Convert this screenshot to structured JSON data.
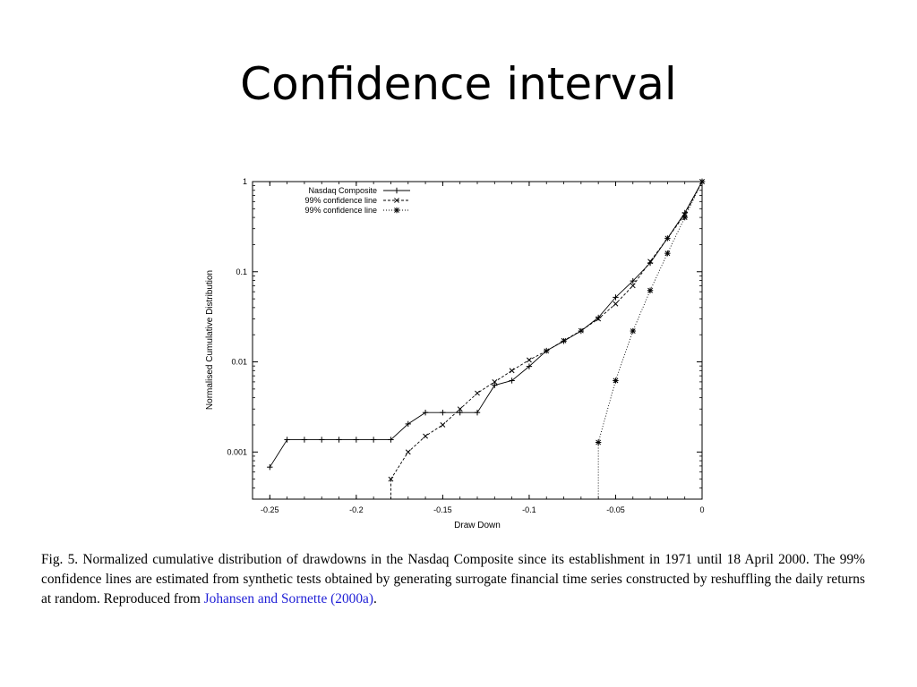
{
  "slide": {
    "title": "Confidence interval"
  },
  "caption": {
    "text": "Fig. 5. Normalized cumulative distribution of drawdowns in the Nasdaq Composite since its establishment in 1971 until 18 April 2000. The 99% confidence lines are estimated from synthetic tests obtained by generating surrogate financial time series constructed by reshuffling the daily returns at random. Reproduced from ",
    "link_text": "Johansen and Sornette (2000a)",
    "end": "."
  },
  "chart_data": {
    "type": "line",
    "xlabel": "Draw Down",
    "ylabel": "Normalised Cumulative Distribution",
    "xlim": [
      -0.26,
      0
    ],
    "ylim": [
      0.0003,
      1
    ],
    "y_scale": "log",
    "grid": false,
    "legend_position": "top-left",
    "x_ticks": [
      -0.25,
      -0.2,
      -0.15,
      -0.1,
      -0.05,
      0
    ],
    "x_tick_labels": [
      "-0.25",
      "-0.2",
      "-0.15",
      "-0.1",
      "-0.05",
      "0"
    ],
    "y_ticks": [
      0.001,
      0.01,
      0.1,
      1
    ],
    "y_tick_labels": [
      "0.001",
      "0.01",
      "0.1",
      "1"
    ],
    "series": [
      {
        "name": "Nasdaq Composite",
        "marker": "plus",
        "dash": "solid",
        "x": [
          -0.25,
          -0.24,
          -0.23,
          -0.22,
          -0.21,
          -0.2,
          -0.19,
          -0.18,
          -0.17,
          -0.16,
          -0.15,
          -0.14,
          -0.13,
          -0.12,
          -0.11,
          -0.1,
          -0.09,
          -0.08,
          -0.07,
          -0.06,
          -0.05,
          -0.04,
          -0.03,
          -0.02,
          -0.01,
          0
        ],
        "y": [
          0.00068,
          0.00137,
          0.00137,
          0.00137,
          0.00137,
          0.00137,
          0.00137,
          0.00137,
          0.00205,
          0.00274,
          0.00274,
          0.00274,
          0.00274,
          0.0055,
          0.0062,
          0.0089,
          0.0133,
          0.017,
          0.022,
          0.031,
          0.052,
          0.079,
          0.125,
          0.235,
          0.45,
          1.0
        ]
      },
      {
        "name": "99% confidence line",
        "marker": "x",
        "dash": "dashed",
        "x": [
          -0.18,
          -0.17,
          -0.16,
          -0.15,
          -0.14,
          -0.13,
          -0.12,
          -0.11,
          -0.1,
          -0.09,
          -0.08,
          -0.07,
          -0.06,
          -0.05,
          -0.04,
          -0.03,
          -0.02,
          -0.01,
          0
        ],
        "y": [
          0.0005,
          0.001,
          0.0015,
          0.002,
          0.003,
          0.0045,
          0.006,
          0.008,
          0.0105,
          0.0132,
          0.0172,
          0.0222,
          0.03,
          0.044,
          0.07,
          0.13,
          0.235,
          0.43,
          1.0
        ],
        "drop_to_floor_from_x": -0.18
      },
      {
        "name": "99% confidence line",
        "marker": "star",
        "dash": "dotted",
        "x": [
          -0.06,
          -0.05,
          -0.04,
          -0.03,
          -0.02,
          -0.01,
          0
        ],
        "y": [
          0.00128,
          0.0062,
          0.022,
          0.062,
          0.16,
          0.4,
          1.0
        ],
        "drop_to_floor_from_x": -0.06
      }
    ]
  }
}
